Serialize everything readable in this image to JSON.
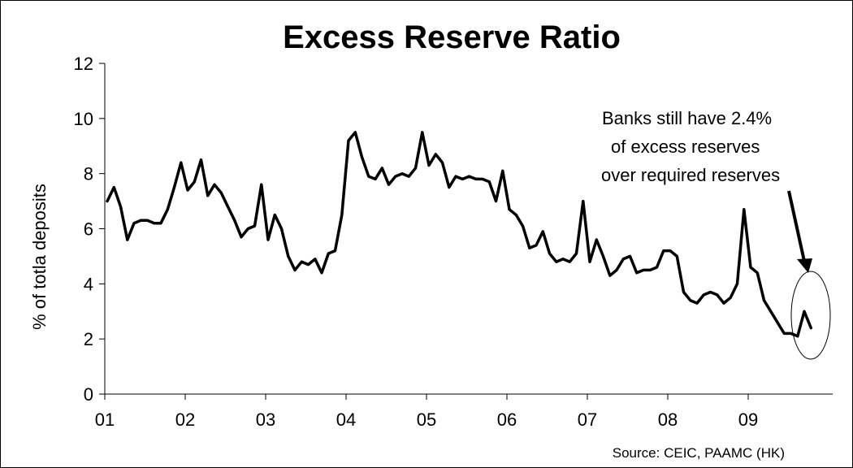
{
  "chart_data": {
    "type": "line",
    "title": "Excess Reserve Ratio",
    "ylabel": "% of totla deposits",
    "xlabel": "",
    "ylim": [
      0,
      12
    ],
    "yticks": [
      "0",
      "2",
      "4",
      "6",
      "8",
      "10",
      "12"
    ],
    "xticks": [
      "01",
      "02",
      "03",
      "04",
      "05",
      "06",
      "07",
      "08",
      "09"
    ],
    "grid": false,
    "legend": "none",
    "series": [
      {
        "color": "#000000",
        "x_start": "2001-01",
        "x_end": "2009-10",
        "values": [
          7.0,
          7.5,
          6.8,
          5.6,
          6.2,
          6.3,
          6.3,
          6.2,
          6.2,
          6.7,
          7.5,
          8.4,
          7.4,
          7.7,
          8.5,
          7.2,
          7.6,
          7.3,
          6.8,
          6.3,
          5.7,
          6.0,
          6.1,
          7.6,
          5.6,
          6.5,
          6.0,
          5.0,
          4.5,
          4.8,
          4.7,
          4.9,
          4.4,
          5.1,
          5.2,
          6.5,
          9.2,
          9.5,
          8.6,
          7.9,
          7.8,
          8.2,
          7.6,
          7.9,
          8.0,
          7.9,
          8.2,
          9.5,
          8.3,
          8.7,
          8.4,
          7.5,
          7.9,
          7.8,
          7.9,
          7.8,
          7.8,
          7.7,
          7.0,
          8.1,
          6.7,
          6.5,
          6.1,
          5.3,
          5.4,
          5.9,
          5.1,
          4.8,
          4.9,
          4.8,
          5.1,
          7.0,
          4.8,
          5.6,
          5.0,
          4.3,
          4.5,
          4.9,
          5.0,
          4.4,
          4.5,
          4.5,
          4.6,
          5.2,
          5.2,
          5.0,
          3.7,
          3.4,
          3.3,
          3.6,
          3.7,
          3.6,
          3.3,
          3.5,
          4.0,
          6.7,
          4.6,
          4.4,
          3.4,
          3.0,
          2.6,
          2.2,
          2.2,
          2.1,
          3.0,
          2.4
        ]
      }
    ],
    "annotations": [
      "Banks still have 2.4%",
      "of excess reserves",
      "over required reserves"
    ],
    "source": "Source: CEIC, PAAMC (HK)"
  }
}
